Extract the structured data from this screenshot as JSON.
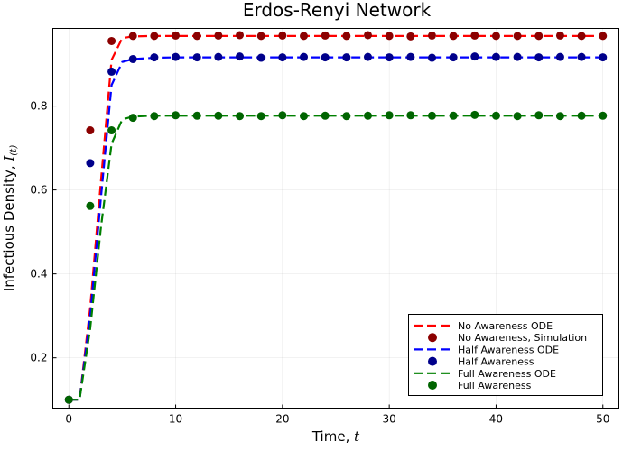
{
  "chart_data": {
    "type": "line",
    "title": "Erdos-Renyi Network",
    "xlabel": "Time, ",
    "xlabel_var": "t",
    "ylabel": "Infectious Density, ",
    "ylabel_var": "I",
    "ylabel_sub": "(t)",
    "xlim": [
      -1.5,
      51.5
    ],
    "ylim": [
      0.08,
      0.985
    ],
    "xticks": [
      0,
      10,
      20,
      30,
      40,
      50
    ],
    "yticks": [
      0.2,
      0.4,
      0.6,
      0.8
    ],
    "grid": true,
    "legend_position": "bottom-right",
    "series": [
      {
        "name": "No Awareness ODE",
        "kind": "line",
        "color": "#ff0000",
        "x": [
          0,
          1,
          2,
          3,
          4,
          5,
          6,
          8,
          10,
          15,
          20,
          25,
          30,
          35,
          40,
          45,
          50
        ],
        "y": [
          0.1,
          0.1,
          0.32,
          0.62,
          0.91,
          0.962,
          0.966,
          0.967,
          0.967,
          0.967,
          0.967,
          0.967,
          0.967,
          0.967,
          0.967,
          0.967,
          0.967
        ]
      },
      {
        "name": "No Awareness, Simulation",
        "kind": "scatter",
        "color": "#8b0000",
        "x": [
          0,
          2,
          4,
          6,
          8,
          10,
          12,
          14,
          16,
          18,
          20,
          22,
          24,
          26,
          28,
          30,
          32,
          34,
          36,
          38,
          40,
          42,
          44,
          46,
          48,
          50
        ],
        "y": [
          0.1,
          0.742,
          0.955,
          0.967,
          0.967,
          0.968,
          0.967,
          0.968,
          0.969,
          0.967,
          0.968,
          0.967,
          0.968,
          0.967,
          0.969,
          0.967,
          0.966,
          0.968,
          0.967,
          0.968,
          0.967,
          0.967,
          0.967,
          0.968,
          0.967,
          0.967
        ]
      },
      {
        "name": "Half Awareness ODE",
        "kind": "line",
        "color": "#0000ff",
        "x": [
          0,
          1,
          2,
          3,
          4,
          5,
          6,
          8,
          10,
          15,
          20,
          25,
          30,
          35,
          40,
          45,
          50
        ],
        "y": [
          0.1,
          0.1,
          0.3,
          0.58,
          0.85,
          0.905,
          0.912,
          0.915,
          0.916,
          0.916,
          0.916,
          0.916,
          0.916,
          0.916,
          0.916,
          0.916,
          0.916
        ]
      },
      {
        "name": "Half Awareness",
        "kind": "scatter",
        "color": "#00008b",
        "x": [
          0,
          2,
          4,
          6,
          8,
          10,
          12,
          14,
          16,
          18,
          20,
          22,
          24,
          26,
          28,
          30,
          32,
          34,
          36,
          38,
          40,
          42,
          44,
          46,
          48,
          50
        ],
        "y": [
          0.1,
          0.664,
          0.882,
          0.912,
          0.916,
          0.917,
          0.916,
          0.917,
          0.918,
          0.915,
          0.916,
          0.917,
          0.916,
          0.916,
          0.917,
          0.916,
          0.917,
          0.915,
          0.916,
          0.918,
          0.917,
          0.917,
          0.916,
          0.917,
          0.917,
          0.916
        ]
      },
      {
        "name": "Full Awareness ODE",
        "kind": "line",
        "color": "#008000",
        "x": [
          0,
          1,
          2,
          3,
          4,
          5,
          6,
          8,
          10,
          15,
          20,
          25,
          30,
          35,
          40,
          45,
          50
        ],
        "y": [
          0.1,
          0.1,
          0.27,
          0.51,
          0.71,
          0.768,
          0.775,
          0.777,
          0.777,
          0.777,
          0.777,
          0.777,
          0.777,
          0.777,
          0.777,
          0.777,
          0.777
        ]
      },
      {
        "name": "Full Awareness",
        "kind": "scatter",
        "color": "#006400",
        "x": [
          0,
          2,
          4,
          6,
          8,
          10,
          12,
          14,
          16,
          18,
          20,
          22,
          24,
          26,
          28,
          30,
          32,
          34,
          36,
          38,
          40,
          42,
          44,
          46,
          48,
          50
        ],
        "y": [
          0.1,
          0.562,
          0.742,
          0.772,
          0.776,
          0.778,
          0.777,
          0.777,
          0.776,
          0.776,
          0.778,
          0.776,
          0.777,
          0.776,
          0.777,
          0.778,
          0.778,
          0.777,
          0.777,
          0.779,
          0.777,
          0.776,
          0.778,
          0.776,
          0.777,
          0.777
        ]
      }
    ]
  }
}
